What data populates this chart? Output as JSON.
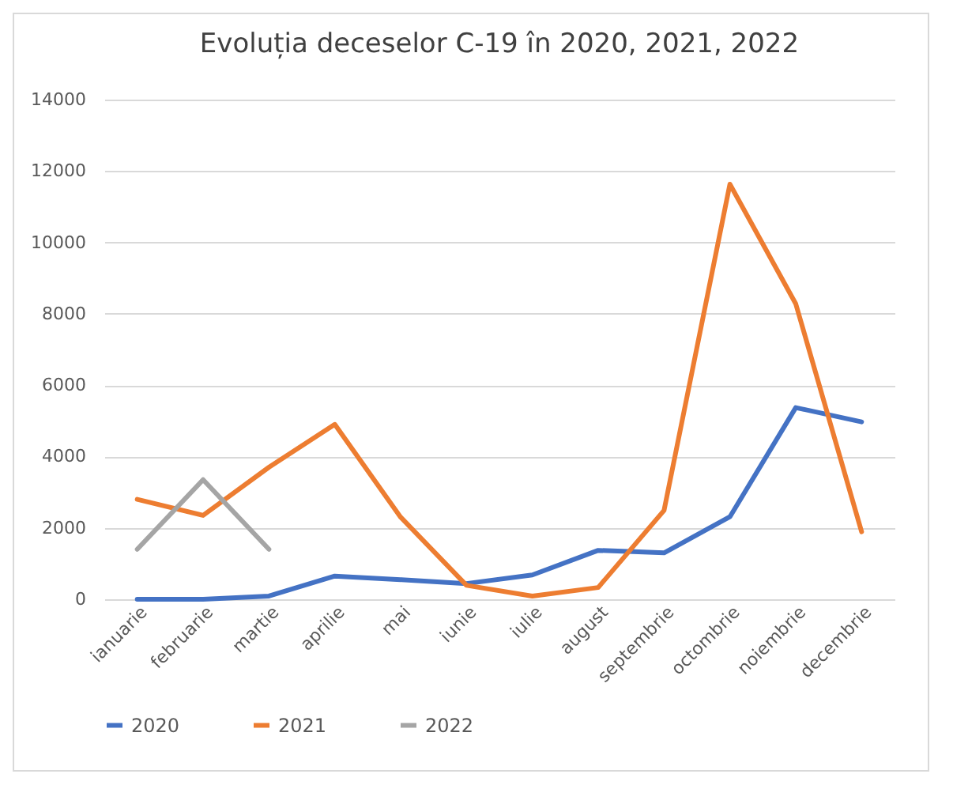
{
  "chart_data": {
    "type": "line",
    "title": "Evoluția deceselor C-19 în 2020, 2021, 2022",
    "categories": [
      "ianuarie",
      "februarie",
      "martie",
      "aprilie",
      "mai",
      "iunie",
      "iulie",
      "august",
      "septembrie",
      "octombrie",
      "noiembrie",
      "decembrie"
    ],
    "series": [
      {
        "name": "2020",
        "color": "#4472c4",
        "values": [
          0,
          0,
          90,
          650,
          550,
          440,
          680,
          1370,
          1300,
          2310,
          5370,
          4970
        ]
      },
      {
        "name": "2021",
        "color": "#ed7d31",
        "values": [
          2800,
          2350,
          3700,
          4900,
          2300,
          390,
          90,
          330,
          2490,
          11630,
          8280,
          1890
        ]
      },
      {
        "name": "2022",
        "color": "#a5a5a5",
        "values": [
          1400,
          3350,
          1400,
          null,
          null,
          null,
          null,
          null,
          null,
          null,
          null,
          null
        ]
      }
    ],
    "ylim": [
      0,
      14000
    ],
    "yticks": [
      0,
      2000,
      4000,
      6000,
      8000,
      10000,
      12000,
      14000
    ],
    "grid": "y",
    "legend": "bottom",
    "marker": "none"
  }
}
